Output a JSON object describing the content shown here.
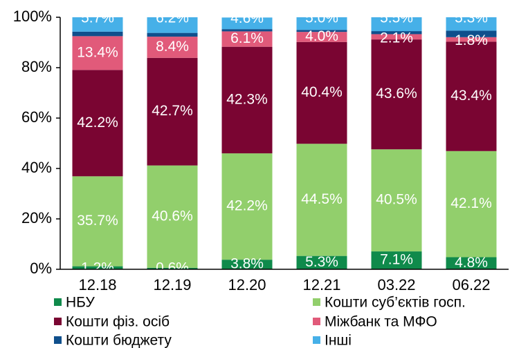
{
  "chart_data": {
    "type": "bar",
    "stacked": true,
    "categories": [
      "12.18",
      "12.19",
      "12.20",
      "12.21",
      "03.22",
      "06.22"
    ],
    "ylim": [
      0,
      100
    ],
    "yticks": [
      "0%",
      "20%",
      "40%",
      "60%",
      "80%",
      "100%"
    ],
    "grid": false,
    "legend_position": "bottom",
    "series": [
      {
        "name": "НБУ",
        "color": "#0f8a4b",
        "values": [
          1.2,
          0.6,
          3.8,
          5.3,
          7.1,
          4.8
        ],
        "labels": [
          "1.2%",
          "0.6%",
          "3.8%",
          "5.3%",
          "7.1%",
          "4.8%"
        ]
      },
      {
        "name": "Кошти суб’єктів госп.",
        "color": "#92cf6c",
        "values": [
          35.7,
          40.6,
          42.2,
          44.5,
          40.5,
          42.1
        ],
        "labels": [
          "35.7%",
          "40.6%",
          "42.2%",
          "44.5%",
          "40.5%",
          "42.1%"
        ]
      },
      {
        "name": "Кошти фіз. осіб",
        "color": "#7a0532",
        "values": [
          42.2,
          42.7,
          42.3,
          40.4,
          43.6,
          43.4
        ],
        "labels": [
          "42.2%",
          "42.7%",
          "42.3%",
          "40.4%",
          "43.6%",
          "43.4%"
        ]
      },
      {
        "name": "Міжбанк та МФО",
        "color": "#e15a7a",
        "values": [
          13.4,
          8.4,
          6.1,
          4.0,
          2.1,
          1.8
        ],
        "labels": [
          "13.4%",
          "8.4%",
          "6.1%",
          "4.0%",
          "2.1%",
          "1.8%"
        ]
      },
      {
        "name": "Кошти бюджету",
        "color": "#0f4f8c",
        "values": [
          1.8,
          1.5,
          0.9,
          0.8,
          1.2,
          2.6
        ],
        "labels": [
          "",
          "",
          "",
          "",
          "",
          ""
        ]
      },
      {
        "name": "Інші",
        "color": "#46b0e8",
        "values": [
          5.7,
          6.2,
          4.6,
          5.0,
          5.5,
          5.3
        ],
        "labels": [
          "5.7%",
          "6.2%",
          "4.6%",
          "5.0%",
          "5.5%",
          "5.3%"
        ]
      }
    ]
  }
}
